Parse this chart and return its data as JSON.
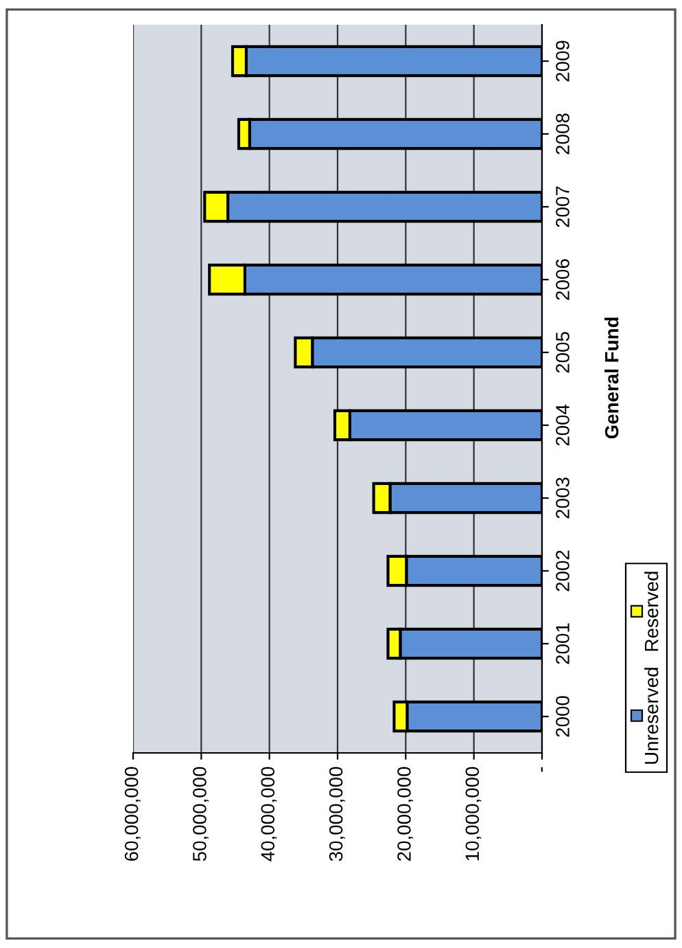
{
  "chart_data": {
    "type": "bar",
    "title": "General Fund",
    "orientation": "horizontal",
    "stacked": true,
    "categories": [
      "2009",
      "2008",
      "2007",
      "2006",
      "2005",
      "2004",
      "2003",
      "2002",
      "2001",
      "2000"
    ],
    "series": [
      {
        "name": "Unreserved",
        "color": "#5b8fd6",
        "values": [
          43400000,
          42900000,
          46100000,
          43600000,
          33700000,
          28200000,
          22300000,
          19900000,
          20800000,
          19800000
        ]
      },
      {
        "name": "Reserved",
        "color": "#ffff00",
        "values": [
          2000000,
          1600000,
          3400000,
          5200000,
          2500000,
          2200000,
          2400000,
          2700000,
          1800000,
          1900000
        ]
      }
    ],
    "xlim": [
      60000000,
      0
    ],
    "xticks": [
      {
        "value": 60000000,
        "label": "60,000,000"
      },
      {
        "value": 50000000,
        "label": "50,000,000"
      },
      {
        "value": 40000000,
        "label": "40,000,000"
      },
      {
        "value": 30000000,
        "label": "30,000,000"
      },
      {
        "value": 20000000,
        "label": "20,000,000"
      },
      {
        "value": 10000000,
        "label": "10,000,000"
      },
      {
        "value": 0,
        "label": "-"
      }
    ],
    "grid": "x",
    "legend": "right"
  }
}
